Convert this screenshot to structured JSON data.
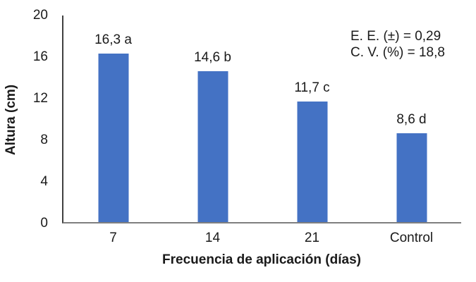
{
  "chart_data": {
    "type": "bar",
    "title": "",
    "categories": [
      "7",
      "14",
      "21",
      "Control"
    ],
    "values": [
      16.3,
      14.6,
      11.7,
      8.6
    ],
    "data_labels": [
      "16,3 a",
      "14,6 b",
      "11,7 c",
      "8,6 d"
    ],
    "xlabel": "Frecuencia de aplicación (días)",
    "ylabel": "Altura (cm)",
    "ylim": [
      0,
      20
    ],
    "yticks": [
      0,
      4,
      8,
      12,
      16,
      20
    ],
    "grid": false,
    "legend_position": "none",
    "bar_color": "#4472C4",
    "axis_line_color": "#404040",
    "baseline_color": "#7F7F7F",
    "annotations": [
      "E. E. (±) = 0,29",
      "C. V. (%) = 18,8"
    ]
  }
}
